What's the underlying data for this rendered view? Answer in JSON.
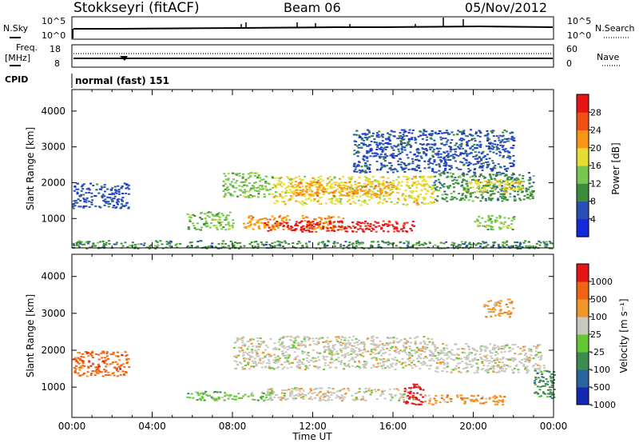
{
  "header": {
    "station": "Stokkseyri (fitACF)",
    "beam": "Beam 06",
    "date": "05/Nov/2012"
  },
  "noise_panel": {
    "left_label": "N.Sky",
    "right_label": "N.Search",
    "ticks_left": [
      "10^5",
      "10^0"
    ],
    "ticks_right": [
      "10^5",
      "10^0"
    ]
  },
  "freq_panel": {
    "left_label_1": "Freq.",
    "left_label_2": "[MHz]",
    "right_label": "Nave",
    "ticks_left": [
      "18",
      "8"
    ],
    "ticks_right": [
      "60",
      "0"
    ]
  },
  "cpid": {
    "label": "CPID",
    "value": "normal (fast) 151"
  },
  "colors": {
    "power_scale": [
      "#1428dc",
      "#2850b4",
      "#3c8c3c",
      "#78c850",
      "#e6dc32",
      "#fa9614",
      "#f05014",
      "#e61414"
    ],
    "velocity_scale": [
      "#1428b4",
      "#2864a0",
      "#3c8c50",
      "#64c832",
      "#c8c8c0",
      "#f09628",
      "#f06414",
      "#e61414"
    ]
  },
  "chart_data": [
    {
      "type": "heatmap",
      "name": "power",
      "ylabel": "Slant Range [km]",
      "xlabel": "",
      "yticks": [
        "1000",
        "2000",
        "3000",
        "4000"
      ],
      "xlim": [
        0,
        24
      ],
      "ylim": [
        180,
        4600
      ],
      "colorbar_label": "Power [dB]",
      "colorbar_ticks": [
        "4",
        "8",
        "12",
        "16",
        "20",
        "24",
        "28"
      ],
      "regions": [
        {
          "t": [
            0.0,
            2.8
          ],
          "r": [
            1300,
            2000
          ],
          "c": 1
        },
        {
          "t": [
            5.7,
            8.0
          ],
          "r": [
            700,
            1200
          ],
          "c": 3
        },
        {
          "t": [
            7.5,
            10.0
          ],
          "r": [
            1600,
            2300
          ],
          "c": 3
        },
        {
          "t": [
            8.5,
            13.5
          ],
          "r": [
            700,
            1100
          ],
          "c": 5
        },
        {
          "t": [
            9.5,
            17.2
          ],
          "r": [
            650,
            950
          ],
          "c": 7
        },
        {
          "t": [
            10.0,
            18.0
          ],
          "r": [
            1400,
            2200
          ],
          "c": 4
        },
        {
          "t": [
            11.0,
            16.0
          ],
          "r": [
            1650,
            2050
          ],
          "c": 5
        },
        {
          "t": [
            18.0,
            23.0
          ],
          "r": [
            1500,
            2300
          ],
          "c": 2
        },
        {
          "t": [
            19.5,
            22.5
          ],
          "r": [
            1750,
            2100
          ],
          "c": 4
        },
        {
          "t": [
            20.0,
            22.0
          ],
          "r": [
            700,
            1100
          ],
          "c": 3
        },
        {
          "t": [
            14.0,
            22.0
          ],
          "r": [
            2300,
            3500
          ],
          "c": 1
        },
        {
          "t": [
            0.0,
            24.0
          ],
          "r": [
            180,
            400
          ],
          "c": 2
        }
      ]
    },
    {
      "type": "heatmap",
      "name": "velocity",
      "ylabel": "Slant Range [km]",
      "xlabel": "Time UT",
      "yticks": [
        "1000",
        "2000",
        "3000",
        "4000"
      ],
      "xticks": [
        "00:00",
        "04:00",
        "08:00",
        "12:00",
        "16:00",
        "20:00",
        "00:00"
      ],
      "xlim": [
        0,
        24
      ],
      "ylim": [
        180,
        4600
      ],
      "colorbar_label": "Velocity [m s⁻¹]",
      "colorbar_ticks": [
        "1000",
        "500",
        "100",
        "25",
        "-25",
        "-100",
        "-500",
        "-1000"
      ],
      "regions": [
        {
          "t": [
            0.0,
            2.8
          ],
          "r": [
            1300,
            2000
          ],
          "c": 6
        },
        {
          "t": [
            5.7,
            10.0
          ],
          "r": [
            650,
            900
          ],
          "c": 3
        },
        {
          "t": [
            8.0,
            18.0
          ],
          "r": [
            1500,
            2400
          ],
          "c": 4
        },
        {
          "t": [
            9.5,
            17.0
          ],
          "r": [
            650,
            1000
          ],
          "c": 4
        },
        {
          "t": [
            16.5,
            17.5
          ],
          "r": [
            550,
            1100
          ],
          "c": 7
        },
        {
          "t": [
            18.0,
            23.5
          ],
          "r": [
            1400,
            2200
          ],
          "c": 4
        },
        {
          "t": [
            17.5,
            21.5
          ],
          "r": [
            550,
            800
          ],
          "c": 5
        },
        {
          "t": [
            20.5,
            22.0
          ],
          "r": [
            2900,
            3400
          ],
          "c": 5
        },
        {
          "t": [
            23.0,
            24.0
          ],
          "r": [
            700,
            1500
          ],
          "c": 2
        }
      ]
    }
  ]
}
